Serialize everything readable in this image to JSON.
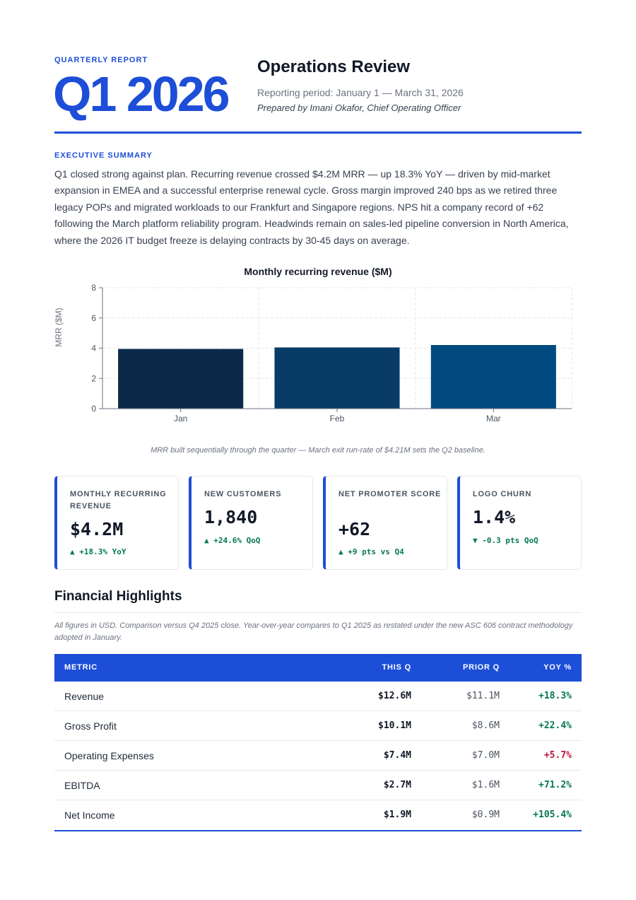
{
  "header": {
    "eyebrow": "QUARTERLY REPORT",
    "quarter": "Q1 2026",
    "title": "Operations Review",
    "period": "Reporting period: January 1 — March 31, 2026",
    "prepared_by": "Prepared by Imani Okafor, Chief Operating Officer"
  },
  "summary": {
    "label": "EXECUTIVE SUMMARY",
    "text": "Q1 closed strong against plan. Recurring revenue crossed $4.2M MRR — up 18.3% YoY — driven by mid-market expansion in EMEA and a successful enterprise renewal cycle. Gross margin improved 240 bps as we retired three legacy POPs and migrated workloads to our Frankfurt and Singapore regions. NPS hit a company record of +62 following the March platform reliability program. Headwinds remain on sales-led pipeline conversion in North America, where the 2026 IT budget freeze is delaying contracts by 30-45 days on average."
  },
  "chart_data": {
    "type": "bar",
    "title": "Monthly recurring revenue ($M)",
    "xlabel": "",
    "ylabel": "MRR ($M)",
    "categories": [
      "Jan",
      "Feb",
      "Mar"
    ],
    "values": [
      3.95,
      4.05,
      4.21
    ],
    "ylim": [
      0,
      8
    ],
    "yticks": [
      0,
      2,
      4,
      6,
      8
    ],
    "grid": true,
    "colors": [
      "#0b2a4a",
      "#083c66",
      "#004a80"
    ]
  },
  "chart_caption": "MRR built sequentially through the quarter — March exit run-rate of $4.21M sets the Q2 baseline.",
  "kpis": [
    {
      "label": "MONTHLY RECURRING REVENUE",
      "value": "$4.2M",
      "delta": "▲ +18.3% YoY"
    },
    {
      "label": "NEW CUSTOMERS",
      "value": "1,840",
      "delta": "▲ +24.6% QoQ"
    },
    {
      "label": "NET PROMOTER SCORE",
      "value": "+62",
      "delta": "▲ +9 pts vs Q4"
    },
    {
      "label": "LOGO CHURN",
      "value": "1.4%",
      "delta": "▼ -0.3 pts QoQ"
    }
  ],
  "financials": {
    "title": "Financial Highlights",
    "note": "All figures in USD. Comparison versus Q4 2025 close. Year-over-year compares to Q1 2025 as restated under the new ASC 606 contract methodology adopted in January.",
    "headers": {
      "metric": "METRIC",
      "this_q": "THIS Q",
      "prior_q": "PRIOR Q",
      "yoy": "YOY %"
    },
    "rows": [
      {
        "metric": "Revenue",
        "this_q": "$12.6M",
        "prior_q": "$11.1M",
        "yoy": "+18.3%",
        "trend": "pos"
      },
      {
        "metric": "Gross Profit",
        "this_q": "$10.1M",
        "prior_q": "$8.6M",
        "yoy": "+22.4%",
        "trend": "pos"
      },
      {
        "metric": "Operating Expenses",
        "this_q": "$7.4M",
        "prior_q": "$7.0M",
        "yoy": "+5.7%",
        "trend": "neg"
      },
      {
        "metric": "EBITDA",
        "this_q": "$2.7M",
        "prior_q": "$1.6M",
        "yoy": "+71.2%",
        "trend": "pos"
      },
      {
        "metric": "Net Income",
        "this_q": "$1.9M",
        "prior_q": "$0.9M",
        "yoy": "+105.4%",
        "trend": "pos"
      }
    ]
  }
}
